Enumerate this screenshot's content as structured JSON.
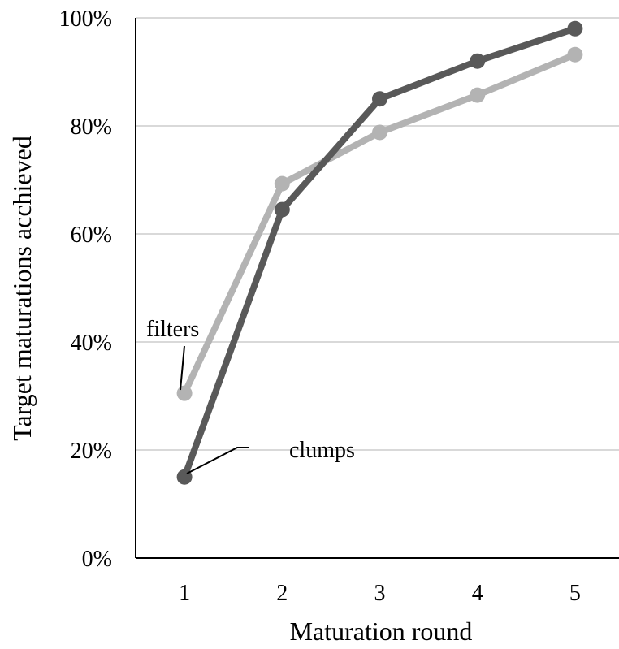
{
  "chart_data": {
    "type": "line",
    "title": "",
    "xlabel": "Maturation round",
    "ylabel": "Target maturations acchieved",
    "x": [
      1,
      2,
      3,
      4,
      5
    ],
    "x_tick_labels": [
      "1",
      "2",
      "3",
      "4",
      "5"
    ],
    "y_tick_labels": [
      "0%",
      "20%",
      "40%",
      "60%",
      "80%",
      "100%"
    ],
    "ylim": [
      0,
      100
    ],
    "grid": true,
    "legend": "none",
    "series": [
      {
        "name": "clumps",
        "values": [
          15,
          64.5,
          85,
          92,
          98
        ],
        "color": "#595959"
      },
      {
        "name": "filters",
        "values": [
          30.5,
          69.3,
          78.8,
          85.7,
          93.2
        ],
        "color": "#b3b3b3"
      }
    ],
    "annotations": [
      {
        "text": "filters",
        "series": "filters"
      },
      {
        "text": "clumps",
        "series": "clumps"
      }
    ]
  }
}
